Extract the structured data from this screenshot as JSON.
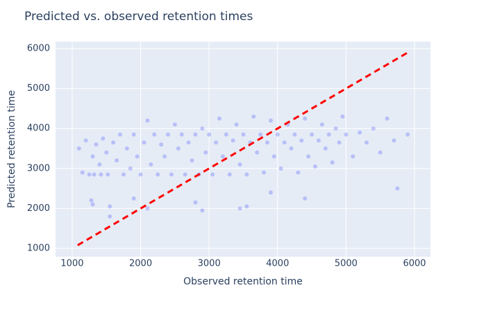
{
  "chart_data": {
    "type": "scatter",
    "title": "Predicted vs. observed retention times",
    "x_label": "Observed retention time",
    "y_label": "Predicted retention time",
    "xlim": [
      757,
      6233
    ],
    "ylim": [
      792,
      6174
    ],
    "xticks": [
      1000,
      2000,
      3000,
      4000,
      5000,
      6000
    ],
    "yticks": [
      1000,
      2000,
      3000,
      4000,
      5000,
      6000
    ],
    "grid": true,
    "points": {
      "color": "#636efa",
      "x": [
        1100,
        1150,
        1200,
        1250,
        1280,
        1300,
        1320,
        1350,
        1400,
        1420,
        1450,
        1500,
        1520,
        1550,
        1600,
        1650,
        1700,
        1750,
        1800,
        1850,
        1900,
        1950,
        2000,
        2050,
        2100,
        2150,
        2200,
        2250,
        2300,
        2350,
        2400,
        2450,
        2500,
        2550,
        2600,
        2650,
        2700,
        2750,
        2800,
        2850,
        2900,
        2950,
        3000,
        3050,
        3100,
        3150,
        3200,
        3250,
        3300,
        3350,
        3400,
        3450,
        3500,
        3550,
        3600,
        3650,
        3700,
        3750,
        3800,
        3850,
        3900,
        3950,
        4000,
        4050,
        4100,
        4150,
        4200,
        4250,
        4300,
        4350,
        4400,
        4450,
        4500,
        4550,
        4600,
        4650,
        4700,
        4750,
        4800,
        4850,
        4900,
        4950,
        5000,
        5100,
        5200,
        5300,
        5400,
        5500,
        5600,
        5700,
        5750,
        5900,
        1300,
        1550,
        1900,
        2100,
        2900,
        3450,
        3550,
        4400,
        2800,
        3900
      ],
      "y": [
        3500,
        2900,
        3700,
        2850,
        2200,
        3300,
        2850,
        3600,
        3100,
        2850,
        3750,
        3400,
        2850,
        2050,
        3650,
        3200,
        3850,
        2850,
        3500,
        3000,
        3850,
        3300,
        2850,
        3650,
        4200,
        3100,
        3850,
        2850,
        3600,
        3300,
        3850,
        2850,
        4100,
        3500,
        3850,
        2850,
        3650,
        3200,
        3850,
        2850,
        4000,
        3400,
        3850,
        2850,
        3650,
        4250,
        3300,
        3850,
        2850,
        3700,
        4100,
        3100,
        3850,
        2850,
        3650,
        4300,
        3400,
        3850,
        2900,
        3650,
        4200,
        3300,
        3850,
        3000,
        3650,
        4100,
        3500,
        3850,
        2900,
        3700,
        4250,
        3300,
        3850,
        3050,
        3700,
        4100,
        3500,
        3850,
        3150,
        4000,
        3650,
        4300,
        3850,
        3300,
        3900,
        3650,
        4000,
        3400,
        4250,
        3700,
        2500,
        3850,
        2100,
        1800,
        2250,
        2000,
        1950,
        2000,
        2050,
        2250,
        2150,
        2400
      ]
    },
    "line": {
      "color": "#ff0000",
      "x": [
        1080,
        5900
      ],
      "y": [
        1080,
        5900
      ]
    }
  }
}
